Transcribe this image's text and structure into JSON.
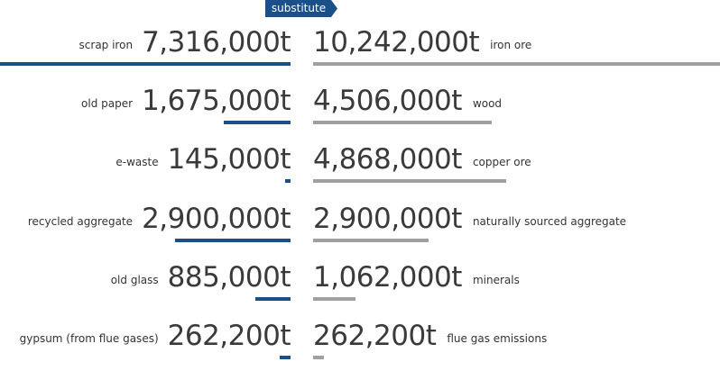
{
  "chart_data": {
    "type": "bar",
    "badge": "substitute",
    "unit": "t",
    "colors": {
      "substitute": "#1a4f8a",
      "primary": "#a0a0a0"
    },
    "rows": [
      {
        "left_label": "scrap iron",
        "left_value": 7316000,
        "left_text": "7,316,000t",
        "right_label": "iron ore",
        "right_value": 10242000,
        "right_text": "10,242,000t"
      },
      {
        "left_label": "old paper",
        "left_value": 1675000,
        "left_text": "1,675,000t",
        "right_label": "wood",
        "right_value": 4506000,
        "right_text": "4,506,000t"
      },
      {
        "left_label": "e-waste",
        "left_value": 145000,
        "left_text": "145,000t",
        "right_label": "copper ore",
        "right_value": 4868000,
        "right_text": "4,868,000t"
      },
      {
        "left_label": "recycled aggregate",
        "left_value": 2900000,
        "left_text": "2,900,000t",
        "right_label": "naturally sourced aggregate",
        "right_value": 2900000,
        "right_text": "2,900,000t"
      },
      {
        "left_label": "old glass",
        "left_value": 885000,
        "left_text": "885,000t",
        "right_label": "minerals",
        "right_value": 1062000,
        "right_text": "1,062,000t"
      },
      {
        "left_label": "gypsum (from flue gases)",
        "left_value": 262200,
        "left_text": "262,200t",
        "right_label": "flue gas emissions",
        "right_value": 262200,
        "right_text": "262,200t"
      }
    ]
  }
}
